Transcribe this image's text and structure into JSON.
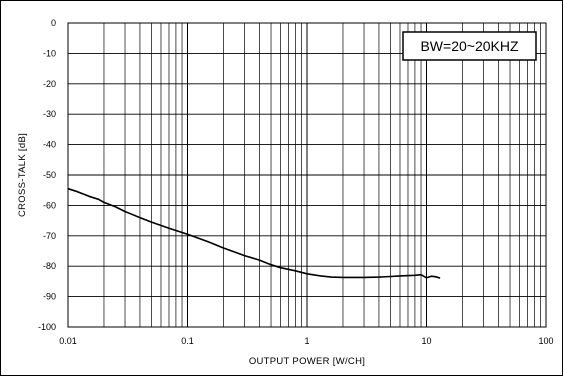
{
  "chart_data": {
    "type": "line",
    "title": "",
    "xlabel": "OUTPUT POWER [W/CH]",
    "ylabel": "CROSS-TALK [dB]",
    "x_scale": "log",
    "xlim": [
      0.01,
      100
    ],
    "ylim": [
      -100,
      0
    ],
    "grid": true,
    "x_ticks": [
      "0.01",
      "0.1",
      "1",
      "10",
      "100"
    ],
    "y_ticks": [
      "0",
      "-10",
      "-20",
      "-30",
      "-40",
      "-50",
      "-60",
      "-70",
      "-80",
      "-90",
      "-100"
    ],
    "annotation": "BW=20~20KHZ",
    "series": [
      {
        "color": "#000000",
        "x": [
          0.01,
          0.012,
          0.015,
          0.018,
          0.02,
          0.025,
          0.03,
          0.04,
          0.05,
          0.07,
          0.1,
          0.15,
          0.2,
          0.3,
          0.4,
          0.5,
          0.6,
          0.8,
          1.0,
          1.3,
          1.6,
          2.0,
          3.0,
          4.0,
          5.0,
          6.0,
          8.0,
          9.0,
          10.0,
          11.0,
          12.0,
          13.0
        ],
        "y": [
          -54.5,
          -55.5,
          -57,
          -58,
          -59,
          -60.5,
          -62,
          -64,
          -65.5,
          -67.5,
          -69.5,
          -72,
          -74,
          -76.5,
          -78,
          -79.5,
          -80.5,
          -81.5,
          -82.5,
          -83.2,
          -83.6,
          -83.7,
          -83.7,
          -83.6,
          -83.4,
          -83.2,
          -83.0,
          -82.8,
          -83.8,
          -83.3,
          -83.5,
          -83.9
        ]
      }
    ]
  }
}
